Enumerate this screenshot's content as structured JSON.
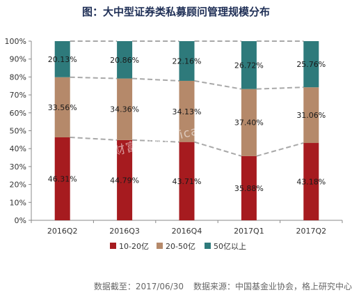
{
  "title": "图：大中型证券类私募顾问管理规模分布",
  "watermark": "格上财富 www.licai.com",
  "footer": {
    "date_text": "数据截至：2017/06/30",
    "source_text": "数据来源：中国基金业协会，格上研究中心"
  },
  "chart_data": {
    "type": "bar",
    "stacked": true,
    "categories": [
      "2016Q2",
      "2016Q3",
      "2016Q4",
      "2017Q1",
      "2017Q2"
    ],
    "series": [
      {
        "name": "10-20亿",
        "values": [
          46.31,
          44.79,
          43.71,
          35.88,
          43.18
        ],
        "labels": [
          "46.31%",
          "44.79%",
          "43.71%",
          "35.88%",
          "43.18%"
        ],
        "color": "#a61b1f"
      },
      {
        "name": "20-50亿",
        "values": [
          33.56,
          34.36,
          34.13,
          37.4,
          31.06
        ],
        "labels": [
          "33.56%",
          "34.36%",
          "34.13%",
          "37.40%",
          "31.06%"
        ],
        "color": "#b5896a"
      },
      {
        "name": "50亿以上",
        "values": [
          20.13,
          20.86,
          22.16,
          26.72,
          25.76
        ],
        "labels": [
          "20.13%",
          "20.86%",
          "22.16%",
          "26.72%",
          "25.76%"
        ],
        "color": "#2e7a7b"
      }
    ],
    "ylim": [
      0,
      100
    ],
    "yticks": [
      "0%",
      "10%",
      "20%",
      "30%",
      "40%",
      "50%",
      "60%",
      "70%",
      "80%",
      "90%",
      "100%"
    ],
    "legend_position": "bottom",
    "grid": false
  }
}
